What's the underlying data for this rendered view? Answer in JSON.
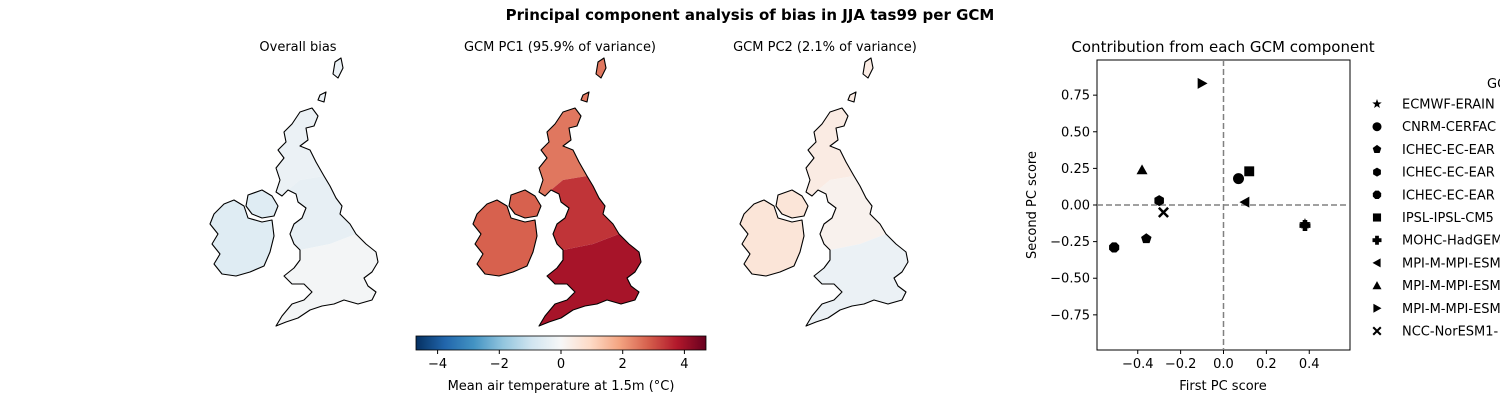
{
  "title": "Principal component analysis of bias in JJA tas99 per GCM",
  "maps": [
    {
      "title": "Overall bias",
      "values": [
        -0.3,
        -0.6,
        -0.4,
        -0.1
      ]
    },
    {
      "title": "GCM PC1 (95.9% of variance)",
      "values": [
        2.5,
        2.8,
        3.4,
        3.9
      ]
    },
    {
      "title": "GCM PC2 (2.1% of variance)",
      "values": [
        0.4,
        0.6,
        0.2,
        -0.3
      ]
    }
  ],
  "colorbar": {
    "label": "Mean air temperature at 1.5m (°C)",
    "range": [
      -4.7,
      4.7
    ],
    "ticks": [
      "−4",
      "−2",
      "0",
      "2",
      "4"
    ],
    "tick_values": [
      -4,
      -2,
      0,
      2,
      4
    ],
    "colormap": "RdBu_r"
  },
  "chart_data": {
    "type": "scatter",
    "title": "Contribution from each GCM component",
    "xlabel": "First PC score",
    "ylabel": "Second PC score",
    "xlim": [
      -0.59,
      0.59
    ],
    "ylim": [
      -0.99,
      0.99
    ],
    "xticks": [
      -0.4,
      -0.2,
      0.0,
      0.2,
      0.4
    ],
    "xtick_labels": [
      "−0.4",
      "−0.2",
      "0.0",
      "0.2",
      "0.4"
    ],
    "yticks": [
      0.75,
      0.5,
      0.25,
      0.0,
      -0.25,
      -0.5,
      -0.75
    ],
    "ytick_labels": [
      "0.75",
      "0.50",
      "0.25",
      "0.00",
      "−0.25",
      "−0.50",
      "−0.75"
    ],
    "legend_title": "GC",
    "legend_position": "right, outside (clipped)",
    "points": [
      {
        "label": "ECMWF-ERAIN",
        "marker": "star",
        "x": 0.38,
        "y": -0.13
      },
      {
        "label": "CNRM-CERFAC",
        "marker": "circle",
        "x": 0.07,
        "y": 0.18
      },
      {
        "label": "ICHEC-EC-EAR",
        "marker": "pentagon",
        "x": -0.36,
        "y": -0.23
      },
      {
        "label": "ICHEC-EC-EAR",
        "marker": "hexagon",
        "x": -0.3,
        "y": 0.03
      },
      {
        "label": "ICHEC-EC-EAR",
        "marker": "octagon",
        "x": -0.51,
        "y": -0.29
      },
      {
        "label": "IPSL-IPSL-CM5",
        "marker": "square",
        "x": 0.12,
        "y": 0.23
      },
      {
        "label": "MOHC-HadGEM",
        "marker": "plus",
        "x": 0.38,
        "y": -0.14
      },
      {
        "label": "MPI-M-MPI-ESM",
        "marker": "triangle-left",
        "x": 0.1,
        "y": 0.02
      },
      {
        "label": "MPI-M-MPI-ESM",
        "marker": "triangle-up",
        "x": -0.38,
        "y": 0.24
      },
      {
        "label": "MPI-M-MPI-ESM",
        "marker": "triangle-right",
        "x": -0.1,
        "y": 0.83
      },
      {
        "label": "NCC-NorESM1-",
        "marker": "x",
        "x": -0.28,
        "y": -0.05
      }
    ]
  }
}
